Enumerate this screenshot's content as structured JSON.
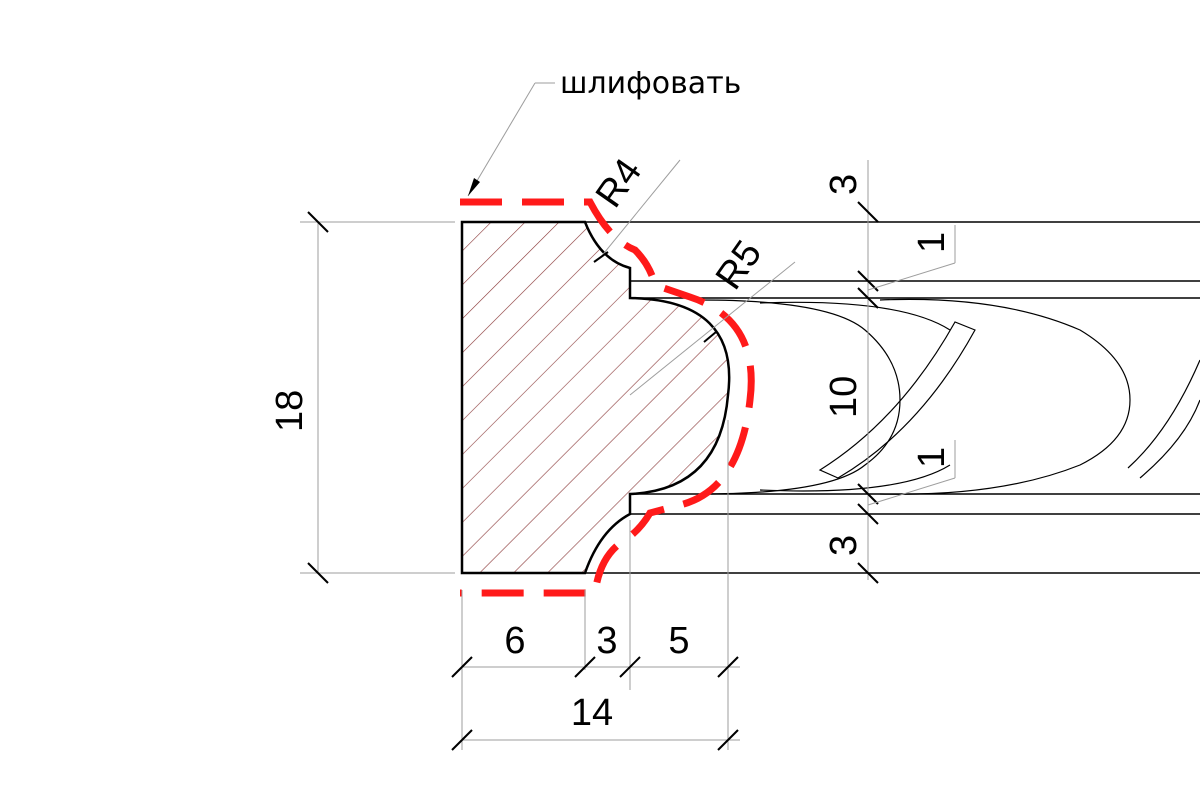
{
  "note": {
    "text": "шлифовать"
  },
  "radii": {
    "r4": "R4",
    "r5": "R5"
  },
  "dims": {
    "height": "18",
    "w6": "6",
    "w3": "3",
    "w5": "5",
    "w14": "14",
    "top3": "3",
    "gap_top1": "1",
    "mid10": "10",
    "gap_bot1": "1",
    "bot3": "3"
  },
  "colors": {
    "sanding_line": "#ff1a1a",
    "hatch": "#8b3a3a",
    "outline": "#000000",
    "extension": "#9e9e9e"
  }
}
